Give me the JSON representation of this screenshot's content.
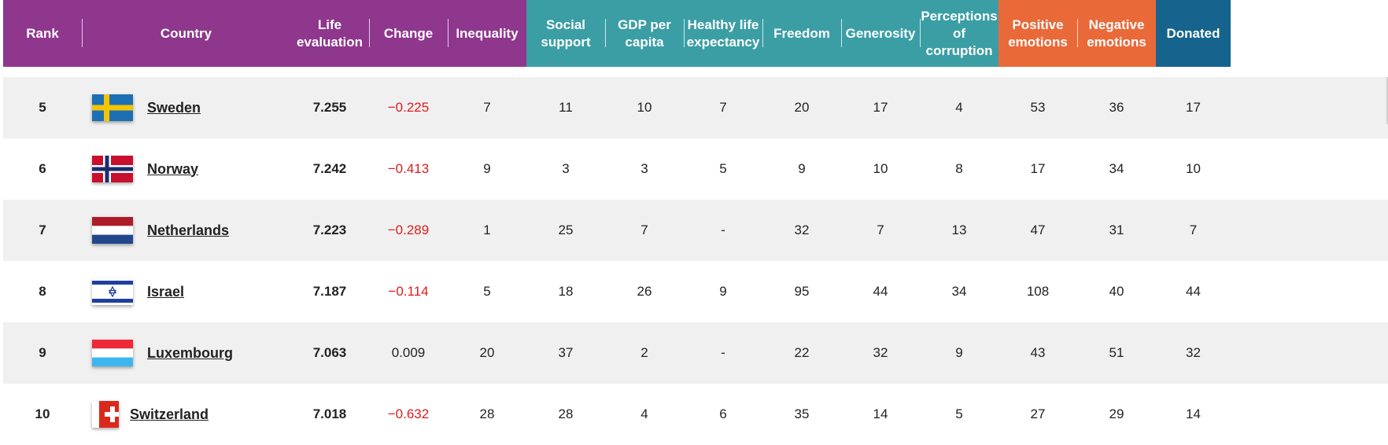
{
  "headers": [
    {
      "key": "rank",
      "label": "Rank",
      "group": "purple"
    },
    {
      "key": "country",
      "label": "Country",
      "group": "purple"
    },
    {
      "key": "life",
      "label": "Life evaluation",
      "group": "purple"
    },
    {
      "key": "change",
      "label": "Change",
      "group": "purple"
    },
    {
      "key": "inequality",
      "label": "Inequality",
      "group": "purple"
    },
    {
      "key": "social",
      "label": "Social support",
      "group": "teal"
    },
    {
      "key": "gdp",
      "label": "GDP per capita",
      "group": "teal"
    },
    {
      "key": "health",
      "label": "Healthy life expectancy",
      "group": "teal"
    },
    {
      "key": "freedom",
      "label": "Freedom",
      "group": "teal"
    },
    {
      "key": "generosity",
      "label": "Generosity",
      "group": "teal"
    },
    {
      "key": "corruption",
      "label": "Perceptions of corruption",
      "group": "teal"
    },
    {
      "key": "positive",
      "label": "Positive emotions",
      "group": "orange"
    },
    {
      "key": "negative",
      "label": "Negative emotions",
      "group": "orange"
    },
    {
      "key": "donated",
      "label": "Donated",
      "group": "blue"
    }
  ],
  "colors": {
    "purple": "#8e378d",
    "teal": "#3b9ea5",
    "orange": "#ea6939",
    "blue": "#16648e",
    "negative_change": "#e01b1b",
    "row_alt": "#f0f0f0"
  },
  "rows": [
    {
      "rank": "5",
      "flag": "sweden-flag-icon",
      "country": "Sweden",
      "life": "7.255",
      "change": "−0.225",
      "change_negative": true,
      "inequality": "7",
      "social": "11",
      "gdp": "10",
      "health": "7",
      "freedom": "20",
      "generosity": "17",
      "corruption": "4",
      "positive": "53",
      "negative": "36",
      "donated": "17"
    },
    {
      "rank": "6",
      "flag": "norway-flag-icon",
      "country": "Norway",
      "life": "7.242",
      "change": "−0.413",
      "change_negative": true,
      "inequality": "9",
      "social": "3",
      "gdp": "3",
      "health": "5",
      "freedom": "9",
      "generosity": "10",
      "corruption": "8",
      "positive": "17",
      "negative": "34",
      "donated": "10"
    },
    {
      "rank": "7",
      "flag": "netherlands-flag-icon",
      "country": "Netherlands",
      "life": "7.223",
      "change": "−0.289",
      "change_negative": true,
      "inequality": "1",
      "social": "25",
      "gdp": "7",
      "health": "-",
      "freedom": "32",
      "generosity": "7",
      "corruption": "13",
      "positive": "47",
      "negative": "31",
      "donated": "7"
    },
    {
      "rank": "8",
      "flag": "israel-flag-icon",
      "country": "Israel",
      "life": "7.187",
      "change": "−0.114",
      "change_negative": true,
      "inequality": "5",
      "social": "18",
      "gdp": "26",
      "health": "9",
      "freedom": "95",
      "generosity": "44",
      "corruption": "34",
      "positive": "108",
      "negative": "40",
      "donated": "44"
    },
    {
      "rank": "9",
      "flag": "luxembourg-flag-icon",
      "country": "Luxembourg",
      "life": "7.063",
      "change": "0.009",
      "change_negative": false,
      "inequality": "20",
      "social": "37",
      "gdp": "2",
      "health": "-",
      "freedom": "22",
      "generosity": "32",
      "corruption": "9",
      "positive": "43",
      "negative": "51",
      "donated": "32"
    },
    {
      "rank": "10",
      "flag": "switzerland-flag-icon",
      "country": "Switzerland",
      "life": "7.018",
      "change": "−0.632",
      "change_negative": true,
      "inequality": "28",
      "social": "28",
      "gdp": "4",
      "health": "6",
      "freedom": "35",
      "generosity": "14",
      "corruption": "5",
      "positive": "27",
      "negative": "29",
      "donated": "14"
    }
  ]
}
